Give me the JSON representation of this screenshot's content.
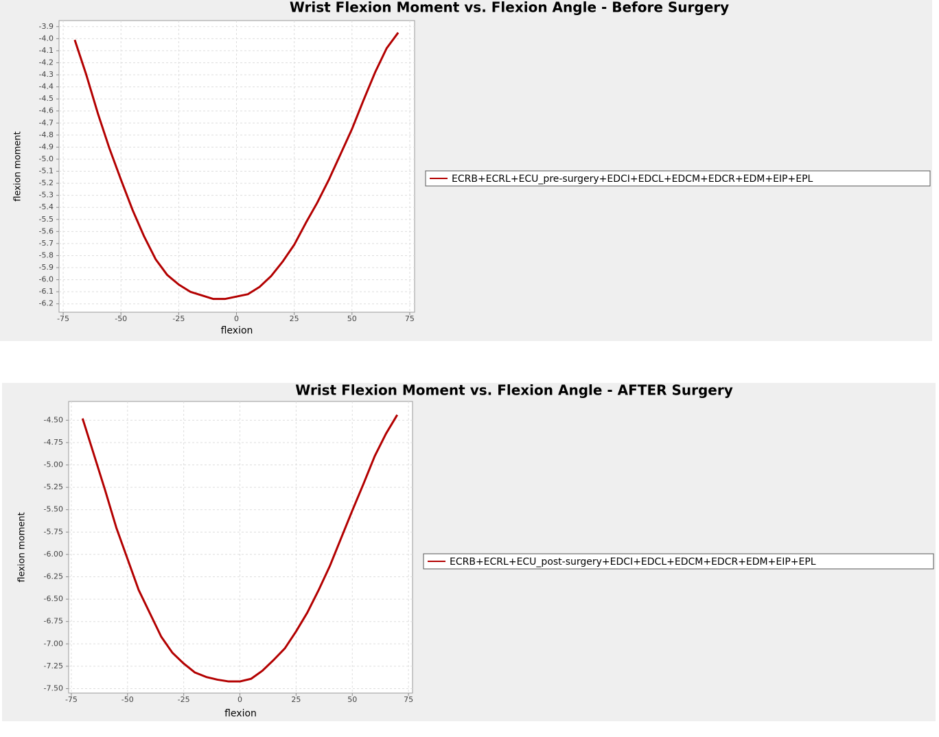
{
  "chart_data": [
    {
      "type": "line",
      "title": "Wrist Flexion Moment vs. Flexion Angle - Before Surgery",
      "x_label": "flexion",
      "y_label": "flexion moment",
      "x": [
        -70,
        -65,
        -60,
        -55,
        -50,
        -45,
        -40,
        -35,
        -30,
        -25,
        -20,
        -15,
        -10,
        -5,
        0,
        5,
        10,
        15,
        20,
        25,
        30,
        35,
        40,
        45,
        50,
        55,
        60,
        65,
        70
      ],
      "series": [
        {
          "name": "ECRB+ECRL+ECU_pre-surgery+EDCI+EDCL+EDCM+EDCR+EDM+EIP+EPL",
          "color": "#b30000",
          "values": [
            -4.01,
            -4.3,
            -4.62,
            -4.91,
            -5.17,
            -5.42,
            -5.64,
            -5.83,
            -5.96,
            -6.04,
            -6.1,
            -6.13,
            -6.16,
            -6.16,
            -6.14,
            -6.12,
            -6.06,
            -5.97,
            -5.85,
            -5.71,
            -5.53,
            -5.36,
            -5.17,
            -4.96,
            -4.75,
            -4.51,
            -4.28,
            -4.08,
            -3.95
          ]
        }
      ],
      "xlim": [
        -76.8,
        77.1
      ],
      "ylim": [
        -6.27,
        -3.85
      ],
      "xticks": [
        -75,
        -50,
        -25,
        0,
        25,
        50,
        75
      ],
      "yticks": [
        -3.9,
        {
          "value": -4,
          "label": "-4.0"
        },
        -4.1,
        -4.2,
        -4.3,
        -4.4,
        -4.5,
        -4.6,
        -4.7,
        -4.8,
        -4.9,
        {
          "value": -5,
          "label": "-5.0"
        },
        -5.1,
        -5.2,
        -5.3,
        -5.4,
        -5.5,
        -5.6,
        -5.7,
        -5.8,
        -5.9,
        {
          "value": -6,
          "label": "-6.0"
        },
        -6.1,
        -6.2
      ],
      "grid": true
    },
    {
      "type": "line",
      "title": "Wrist Flexion Moment vs. Flexion Angle - AFTER Surgery",
      "x_label": "flexion",
      "y_label": "flexion moment",
      "x": [
        -70,
        -65,
        -60,
        -55,
        -50,
        -45,
        -40,
        -35,
        -30,
        -25,
        -20,
        -15,
        -10,
        -5,
        0,
        5,
        10,
        15,
        20,
        25,
        30,
        35,
        40,
        45,
        50,
        55,
        60,
        65,
        70
      ],
      "series": [
        {
          "name": "ECRB+ECRL+ECU_post-surgery+EDCI+EDCL+EDCM+EDCR+EDM+EIP+EPL",
          "color": "#b30000",
          "values": [
            -4.48,
            -4.88,
            -5.28,
            -5.7,
            -6.05,
            -6.4,
            -6.66,
            -6.92,
            -7.1,
            -7.22,
            -7.32,
            -7.37,
            -7.4,
            -7.42,
            -7.42,
            -7.39,
            -7.3,
            -7.18,
            -7.05,
            -6.86,
            -6.65,
            -6.4,
            -6.13,
            -5.82,
            -5.51,
            -5.21,
            -4.9,
            -4.65,
            -4.44
          ]
        }
      ],
      "xlim": [
        -76.2,
        76.8
      ],
      "ylim": [
        -7.55,
        -4.29
      ],
      "xticks": [
        -75,
        -50,
        -25,
        0,
        25,
        50,
        75
      ],
      "yticks": [
        {
          "value": -4.5,
          "label": "-4.50"
        },
        {
          "value": -4.75,
          "label": "-4.75"
        },
        {
          "value": -5,
          "label": "-5.00"
        },
        {
          "value": -5.25,
          "label": "-5.25"
        },
        {
          "value": -5.5,
          "label": "-5.50"
        },
        {
          "value": -5.75,
          "label": "-5.75"
        },
        {
          "value": -6,
          "label": "-6.00"
        },
        {
          "value": -6.25,
          "label": "-6.25"
        },
        {
          "value": -6.5,
          "label": "-6.50"
        },
        {
          "value": -6.75,
          "label": "-6.75"
        },
        {
          "value": -7,
          "label": "-7.00"
        },
        {
          "value": -7.25,
          "label": "-7.25"
        },
        {
          "value": -7.5,
          "label": "-7.50"
        }
      ],
      "grid": true
    }
  ]
}
